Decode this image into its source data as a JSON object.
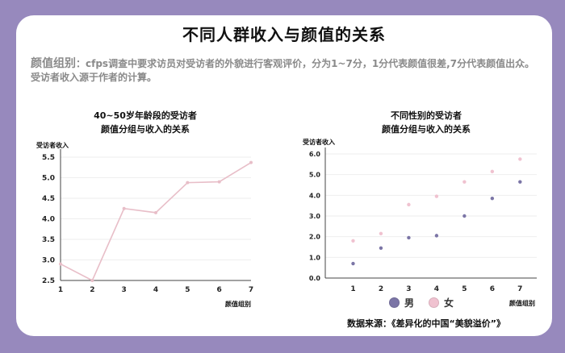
{
  "title": "不同人群收入与颜值的关系",
  "description": {
    "key": "颜值组别",
    "text1": "：cfps调查中要求访员对受访者的外貌进行客观评价，分为1~7分，1分代表颜值很差,7分代表颜值出众。",
    "text2": "受访者收入源于作者的计算。"
  },
  "chart_data": [
    {
      "type": "line",
      "title_line1": "40~50岁年龄段的受访者",
      "title_line2": "颜值分组与收入的关系",
      "xlabel": "颜值组别",
      "ylabel": "受访者收入",
      "x": [
        1,
        2,
        3,
        4,
        5,
        6,
        7
      ],
      "y": [
        2.9,
        2.5,
        4.25,
        4.15,
        4.88,
        4.9,
        5.37
      ],
      "ylim": [
        2.5,
        5.5
      ],
      "yticks": [
        "2.5",
        "3.0",
        "3.5",
        "4.0",
        "4.5",
        "5.0",
        "5.5"
      ],
      "xticks": [
        "1",
        "2",
        "3",
        "4",
        "5",
        "6",
        "7"
      ],
      "color": "#e8bec8",
      "grid": true
    },
    {
      "type": "scatter",
      "title_line1": "不同性别的受访者",
      "title_line2": "颜值分组与收入的关系",
      "xlabel": "颜值组别",
      "ylabel": "受访者收入",
      "x": [
        1,
        2,
        3,
        4,
        5,
        6,
        7
      ],
      "ylim": [
        0,
        6
      ],
      "yticks": [
        "0.0",
        "1.0",
        "2.0",
        "3.0",
        "4.0",
        "5.0",
        "6.0"
      ],
      "xticks": [
        "1",
        "2",
        "3",
        "4",
        "5",
        "6",
        "7"
      ],
      "grid": true,
      "legend_position": "bottom",
      "series": [
        {
          "name": "男",
          "color": "#7b75a6",
          "values": [
            0.7,
            1.45,
            1.95,
            2.05,
            3.0,
            3.85,
            4.65
          ]
        },
        {
          "name": "女",
          "color": "#f0c2d0",
          "values": [
            1.8,
            2.15,
            3.55,
            3.95,
            4.65,
            5.15,
            5.75
          ]
        }
      ]
    }
  ],
  "source": "数据来源：《差异化的中国“美貌溢价”》"
}
